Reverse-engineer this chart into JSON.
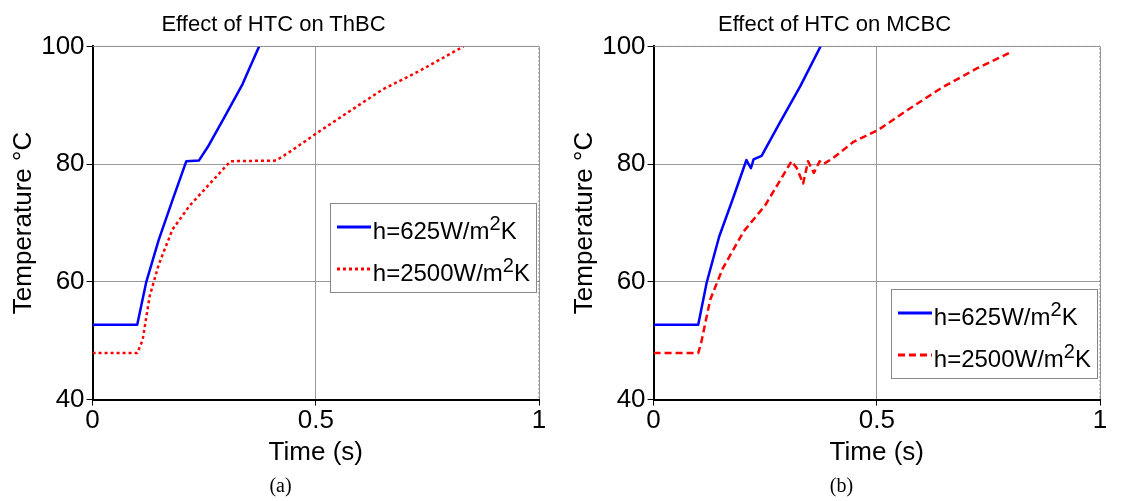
{
  "chart_data": [
    {
      "type": "line",
      "title": "Effect of HTC on ThBC",
      "xlabel": "Time (s)",
      "ylabel": "Temperature °C",
      "xlim": [
        0,
        1
      ],
      "xticks": [
        0,
        0.5,
        1
      ],
      "ylim": [
        40,
        100
      ],
      "yticks": [
        40,
        60,
        80,
        100
      ],
      "grid": true,
      "legend": "right",
      "annotations": [
        "(a)"
      ],
      "series": [
        {
          "name": "h=625W/m$^{2}$K",
          "color": "#0000ff",
          "line_style": "solid",
          "x": [
            0,
            0.1,
            0.12,
            0.148,
            0.179,
            0.21,
            0.238,
            0.258,
            0.297,
            0.336,
            0.373
          ],
          "values": [
            52.7,
            52.7,
            59.9,
            67.1,
            73.9,
            80.5,
            80.6,
            82.9,
            88.2,
            93.6,
            100
          ]
        },
        {
          "name": "h=2500W/m$^{2}$K",
          "color": "#ff0000",
          "line_style": "dotted",
          "x": [
            0,
            0.1,
            0.112,
            0.128,
            0.148,
            0.179,
            0.218,
            0.258,
            0.309,
            0.411,
            0.446,
            0.501,
            0.572,
            0.65,
            0.729,
            0.831
          ],
          "values": [
            47.9,
            47.9,
            50.1,
            57.6,
            62.9,
            68.9,
            73,
            76.3,
            80.5,
            80.6,
            82.3,
            85.2,
            88.8,
            92.7,
            95.7,
            100
          ]
        }
      ]
    },
    {
      "type": "line",
      "title": "Effect of HTC on MCBC",
      "xlabel": "Time (s)",
      "ylabel": "Temperature °C",
      "xlim": [
        0,
        1
      ],
      "xticks": [
        0,
        0.5,
        1
      ],
      "ylim": [
        40,
        100
      ],
      "yticks": [
        40,
        60,
        80,
        100
      ],
      "grid": true,
      "legend": "bottom right",
      "annotations": [
        "(b)"
      ],
      "series": [
        {
          "name": "h=625W/m$^{2}$K",
          "color": "#0000ff",
          "line_style": "solid",
          "x": [
            0,
            0.1,
            0.119,
            0.147,
            0.178,
            0.208,
            0.218,
            0.224,
            0.242,
            0.281,
            0.329,
            0.374
          ],
          "values": [
            52.7,
            52.7,
            59.9,
            67.7,
            74.2,
            80.7,
            79.3,
            80.8,
            81.4,
            86.8,
            93.3,
            100
          ]
        },
        {
          "name": "h=2500W/m$^{2}$K",
          "color": "#ff0000",
          "line_style": "dashed",
          "x": [
            0,
            0.1,
            0.107,
            0.127,
            0.155,
            0.202,
            0.25,
            0.309,
            0.321,
            0.335,
            0.346,
            0.359,
            0.372,
            0.38,
            0.4,
            0.448,
            0.503,
            0.567,
            0.646,
            0.725,
            0.8
          ],
          "values": [
            47.9,
            47.9,
            49.8,
            57,
            62.3,
            68.6,
            73,
            80.5,
            79.3,
            76.7,
            80.5,
            78.5,
            80.5,
            80,
            80.9,
            83.8,
            85.8,
            89.1,
            93,
            96.3,
            99
          ]
        }
      ]
    }
  ]
}
